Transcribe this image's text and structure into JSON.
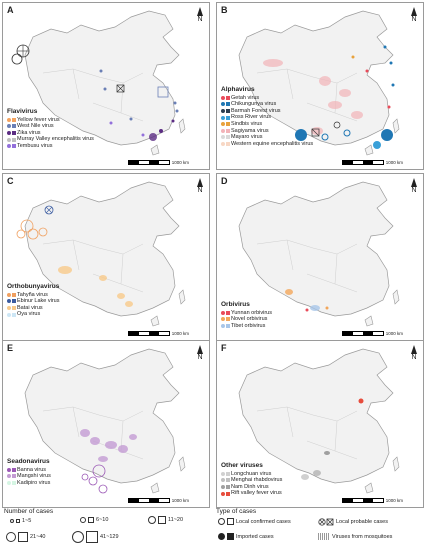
{
  "panels": [
    {
      "id": "A",
      "legend_title": "Flavivirus",
      "items": [
        {
          "label": "Yellow fever virus",
          "color": "#f4a460"
        },
        {
          "label": "West Nile virus",
          "color": "#6a7fb5"
        },
        {
          "label": "Zika virus",
          "color": "#5b2c83"
        },
        {
          "label": "Murray Valley encephalitis virus",
          "color": "#c0c0c0"
        },
        {
          "label": "Tembusu virus",
          "color": "#9370db"
        }
      ],
      "scale": "1000 km"
    },
    {
      "id": "B",
      "legend_title": "Alphavirus",
      "items": [
        {
          "label": "Getah virus",
          "color": "#e94b5a"
        },
        {
          "label": "Chikungunya virus",
          "color": "#1f77b4"
        },
        {
          "label": "Barmah Forest virus",
          "color": "#2c3e50"
        },
        {
          "label": "Ross River virus",
          "color": "#3aa0d8"
        },
        {
          "label": "Sindbis virus",
          "color": "#e8a23c"
        },
        {
          "label": "Sagiyama virus",
          "color": "#f2b3b8"
        },
        {
          "label": "Mayaro virus",
          "color": "#d9d9d9"
        },
        {
          "label": "Western equine encephalitis virus",
          "color": "#f7d7c4"
        }
      ],
      "scale": "1000 km"
    },
    {
      "id": "C",
      "legend_title": "Orthobunyavirus",
      "items": [
        {
          "label": "Tahyña virus",
          "color": "#f0a060"
        },
        {
          "label": "Ebinur Lake virus",
          "color": "#3a5ba0"
        },
        {
          "label": "Batai virus",
          "color": "#f7c98a"
        },
        {
          "label": "Oya virus",
          "color": "#cde6f5"
        }
      ],
      "scale": "1000 km"
    },
    {
      "id": "D",
      "legend_title": "Orbivirus",
      "items": [
        {
          "label": "Yunnan orbivirus",
          "color": "#e94b5a"
        },
        {
          "label": "Novel orbivirus",
          "color": "#f2a65a"
        },
        {
          "label": "Tibet orbivirus",
          "color": "#a8c6e8"
        }
      ],
      "scale": "1000 km"
    },
    {
      "id": "E",
      "legend_title": "Seadonavirus",
      "items": [
        {
          "label": "Banna virus",
          "color": "#9b59b6"
        },
        {
          "label": "Mangshi virus",
          "color": "#c39bd3"
        },
        {
          "label": "Kadipiro virus",
          "color": "#d5f5e3"
        }
      ],
      "scale": "1000 km"
    },
    {
      "id": "F",
      "legend_title": "Other viruses",
      "items": [
        {
          "label": "Longchuan virus",
          "color": "#d0d0d0"
        },
        {
          "label": "Menghai rhabdovirus",
          "color": "#c0c0c0"
        },
        {
          "label": "Nam Dinh virus",
          "color": "#a0a0a0"
        },
        {
          "label": "Rift valley fever virus",
          "color": "#e74c3c"
        }
      ],
      "scale": "1000 km"
    }
  ],
  "north_label": "N",
  "bottom_legend": {
    "number_title": "Number of cases",
    "sizes": [
      "1~5",
      "6~10",
      "11~20",
      "21~40",
      "41~129"
    ],
    "type_title": "Type of cases",
    "types": [
      "Local confirmed cases",
      "Local probable cases",
      "Imported cases",
      "Viruses from mosquitoes"
    ]
  }
}
